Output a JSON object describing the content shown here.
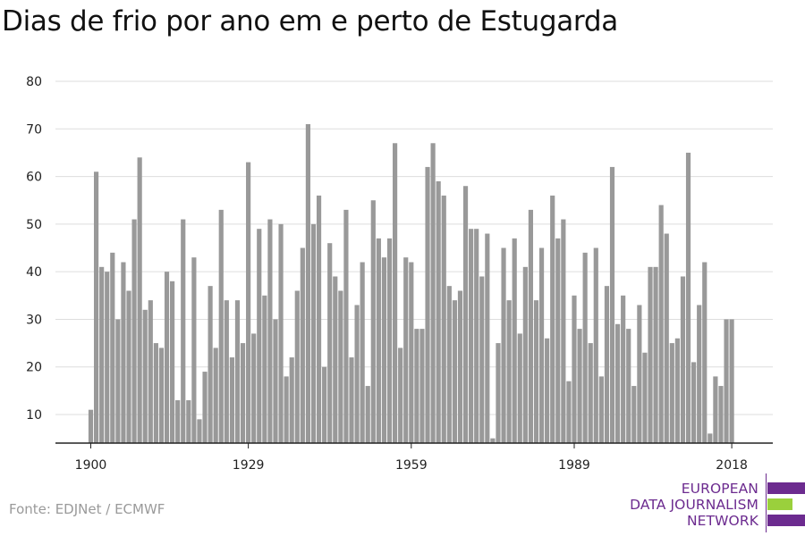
{
  "title": "Dias de frio por ano em e perto de Estugarda",
  "source": "Fonte: EDJNet / ECMWF",
  "logo": {
    "lines": [
      "EUROPEAN",
      "DATA JOURNALISM",
      "NETWORK"
    ],
    "colors": {
      "purple": "#6c2b8f",
      "green": "#9ad03c"
    }
  },
  "colors": {
    "bar": "#999999",
    "grid": "#dddddd",
    "axis": "#222222"
  },
  "chart_data": {
    "type": "bar",
    "title": "Dias de frio por ano em e perto de Estugarda",
    "xlabel": "",
    "ylabel": "",
    "ylim": [
      4,
      80
    ],
    "yticks": [
      10,
      20,
      30,
      40,
      50,
      60,
      70,
      80
    ],
    "xticks": [
      1900,
      1929,
      1959,
      1989,
      2018
    ],
    "grid": true,
    "x": [
      1900,
      1901,
      1902,
      1903,
      1904,
      1905,
      1906,
      1907,
      1908,
      1909,
      1910,
      1911,
      1912,
      1913,
      1914,
      1915,
      1916,
      1917,
      1918,
      1919,
      1920,
      1921,
      1922,
      1923,
      1924,
      1925,
      1926,
      1927,
      1928,
      1929,
      1930,
      1931,
      1932,
      1933,
      1934,
      1935,
      1936,
      1937,
      1938,
      1939,
      1940,
      1941,
      1942,
      1943,
      1944,
      1945,
      1946,
      1947,
      1948,
      1949,
      1950,
      1951,
      1952,
      1953,
      1954,
      1955,
      1956,
      1957,
      1958,
      1959,
      1960,
      1961,
      1962,
      1963,
      1964,
      1965,
      1966,
      1967,
      1968,
      1969,
      1970,
      1971,
      1972,
      1973,
      1974,
      1975,
      1976,
      1977,
      1978,
      1979,
      1980,
      1981,
      1982,
      1983,
      1984,
      1985,
      1986,
      1987,
      1988,
      1989,
      1990,
      1991,
      1992,
      1993,
      1994,
      1995,
      1996,
      1997,
      1998,
      1999,
      2000,
      2001,
      2002,
      2003,
      2004,
      2005,
      2006,
      2007,
      2008,
      2009,
      2010,
      2011,
      2012,
      2013,
      2014,
      2015,
      2016,
      2017,
      2018
    ],
    "values": [
      11,
      61,
      41,
      40,
      44,
      30,
      42,
      36,
      51,
      64,
      32,
      34,
      25,
      24,
      40,
      38,
      13,
      51,
      13,
      43,
      9,
      19,
      37,
      24,
      53,
      34,
      22,
      34,
      25,
      63,
      27,
      49,
      35,
      51,
      30,
      50,
      18,
      22,
      36,
      45,
      71,
      50,
      56,
      20,
      46,
      39,
      36,
      53,
      22,
      33,
      42,
      16,
      55,
      47,
      43,
      47,
      67,
      24,
      43,
      42,
      28,
      28,
      62,
      67,
      59,
      56,
      37,
      34,
      36,
      58,
      49,
      49,
      39,
      48,
      5,
      25,
      45,
      34,
      47,
      27,
      41,
      53,
      34,
      45,
      26,
      56,
      47,
      51,
      17,
      35,
      28,
      44,
      25,
      45,
      18,
      37,
      62,
      29,
      35,
      28,
      16,
      33,
      23,
      41,
      41,
      54,
      48,
      25,
      26,
      39,
      65,
      21,
      33,
      42,
      6,
      18,
      16,
      30,
      30
    ]
  }
}
